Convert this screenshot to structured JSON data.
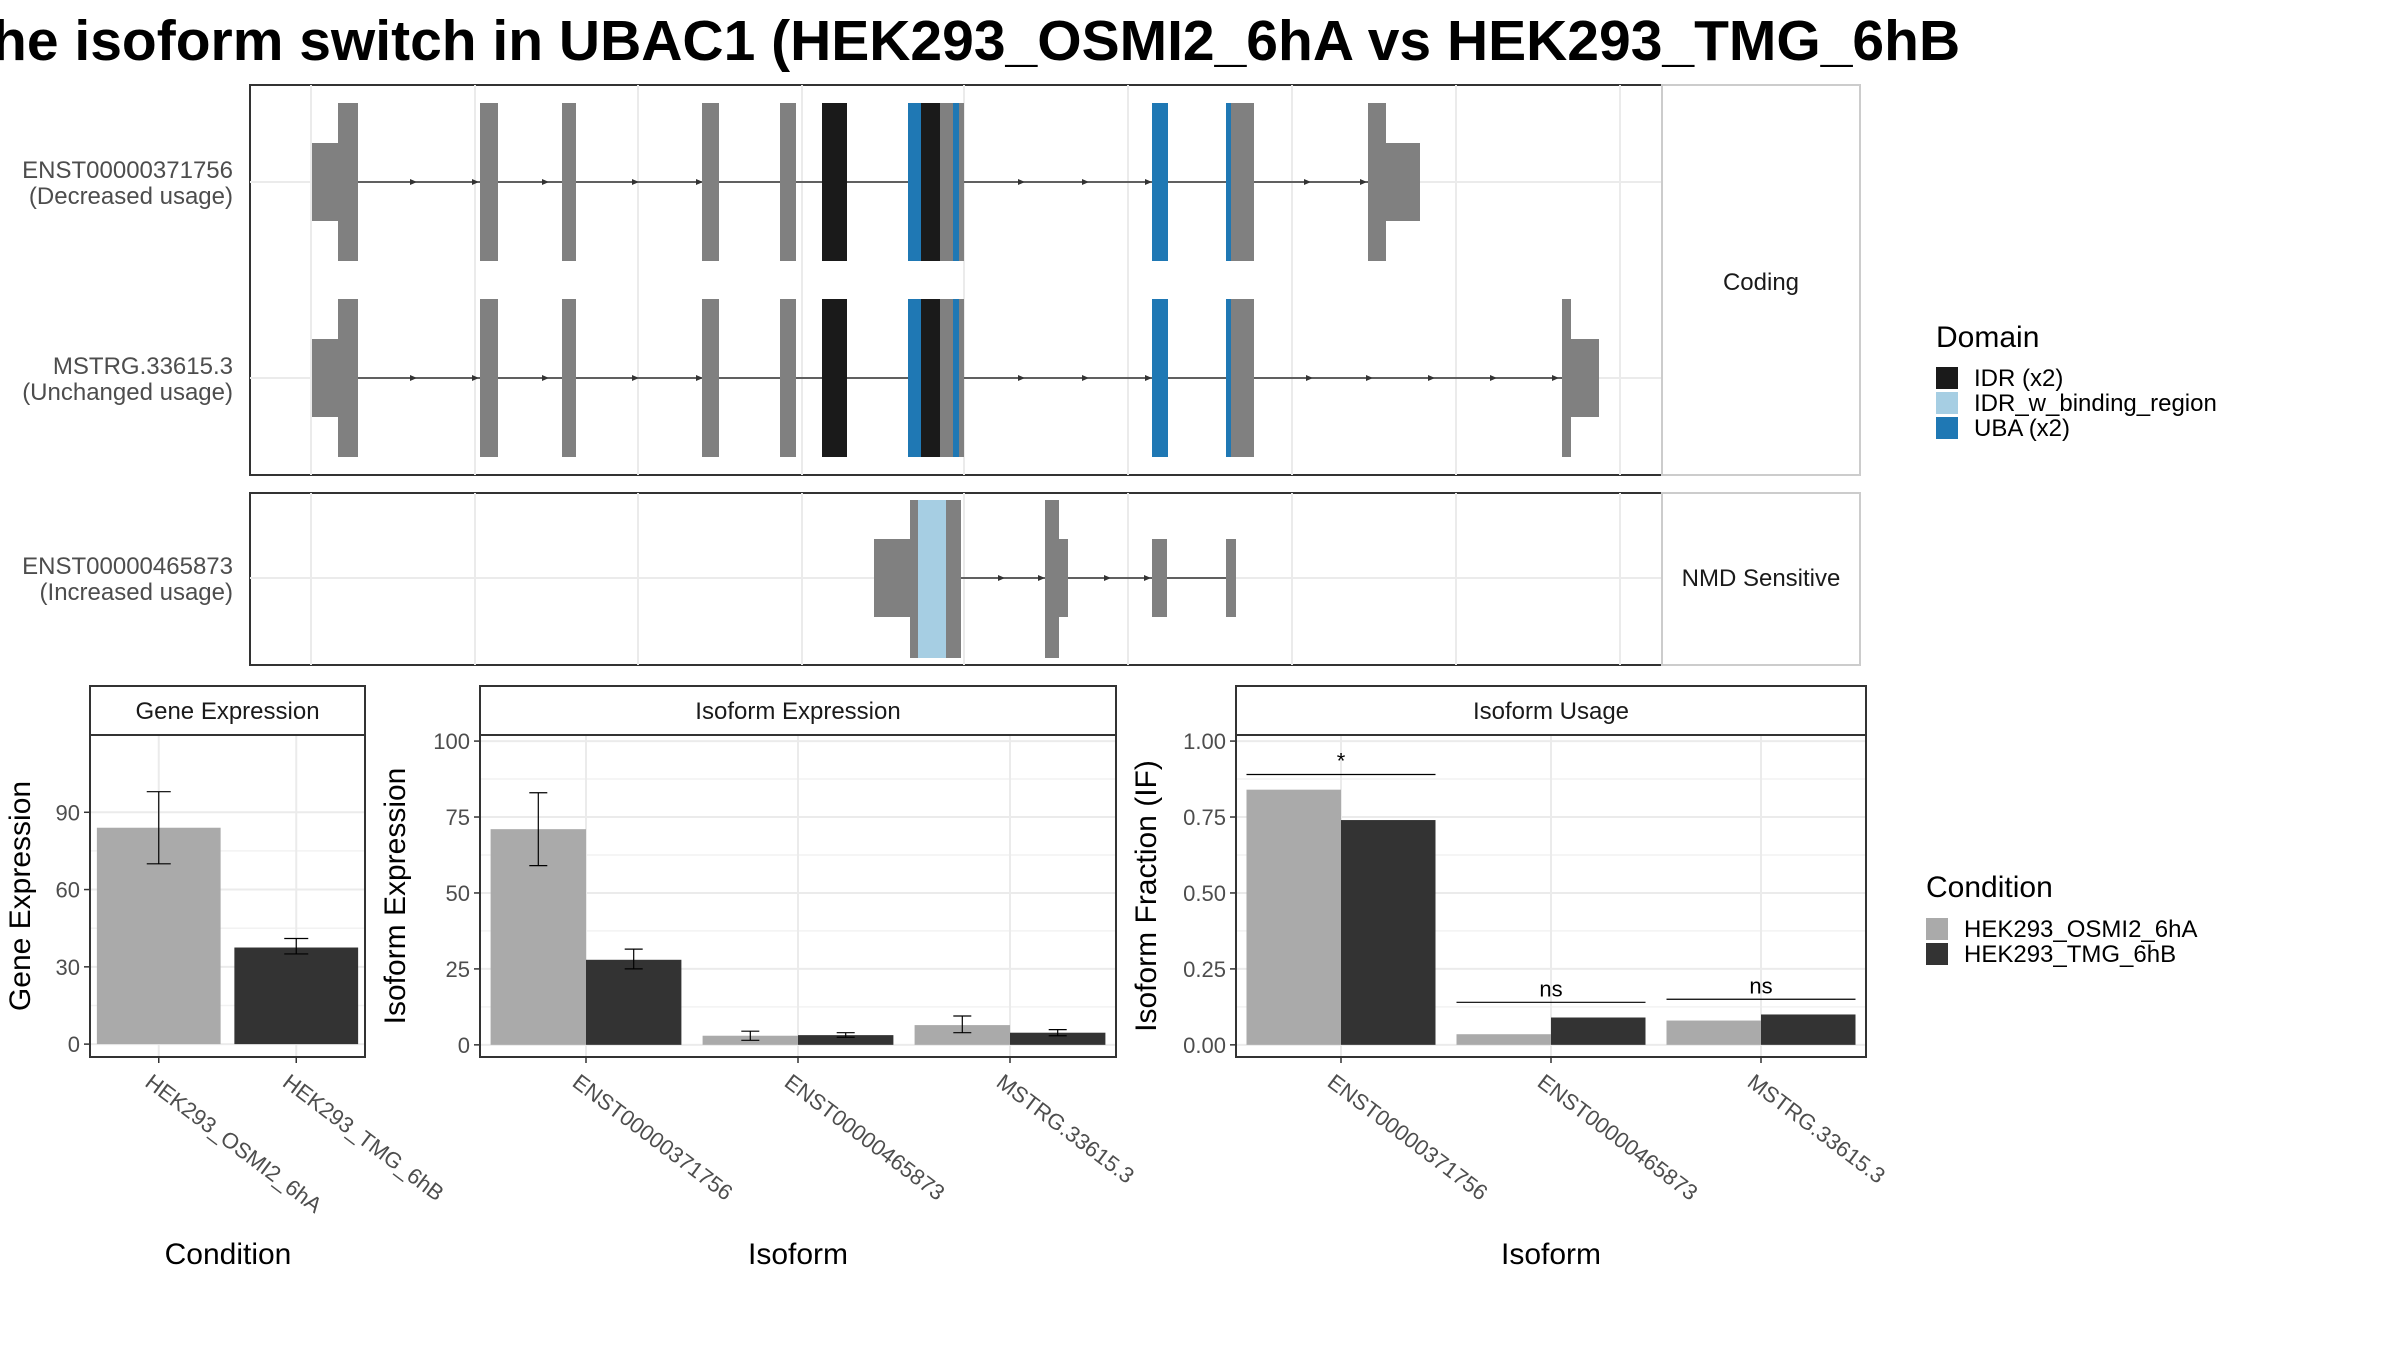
{
  "title": "he isoform switch in UBAC1 (HEK293_OSMI2_6hA vs HEK293_TMG_6hB",
  "structure": {
    "panels": [
      {
        "label": "Coding",
        "transcripts": [
          {
            "name": "ENST00000371756",
            "usage": "(Decreased usage)"
          },
          {
            "name": "MSTRG.33615.3",
            "usage": "(Unchanged usage)"
          }
        ]
      },
      {
        "label": "NMD Sensitive",
        "transcripts": [
          {
            "name": "ENST00000465873",
            "usage": "(Increased usage)"
          }
        ]
      }
    ]
  },
  "domain_legend": {
    "title": "Domain",
    "items": [
      {
        "label": "IDR (x2)",
        "color": "#1a1a1a"
      },
      {
        "label": "IDR_w_binding_region",
        "color": "#a6cee3"
      },
      {
        "label": "UBA (x2)",
        "color": "#1f78b4"
      }
    ]
  },
  "condition_legend": {
    "title": "Condition",
    "items": [
      {
        "label": "HEK293_OSMI2_6hA",
        "color": "#aaaaaa"
      },
      {
        "label": "HEK293_TMG_6hB",
        "color": "#333333"
      }
    ]
  },
  "chart_data": [
    {
      "type": "bar",
      "title": "Gene Expression",
      "xlabel": "Condition",
      "ylabel": "Gene Expression",
      "categories": [
        "HEK293_OSMI2_6hA",
        "HEK293_TMG_6hB"
      ],
      "values": [
        84,
        37.5
      ],
      "errors": [
        [
          70,
          98
        ],
        [
          35,
          41
        ]
      ],
      "colors": [
        "#aaaaaa",
        "#333333"
      ],
      "yticks": [
        0,
        30,
        60,
        90
      ],
      "ylim": [
        -5,
        120
      ]
    },
    {
      "type": "bar",
      "title": "Isoform Expression",
      "xlabel": "Isoform",
      "ylabel": "Isoform Expression",
      "categories": [
        "ENST00000371756",
        "ENST00000465873",
        "MSTRG.33615.3"
      ],
      "series": [
        {
          "name": "HEK293_OSMI2_6hA",
          "values": [
            71,
            3,
            6.5
          ],
          "errors": [
            [
              59,
              83
            ],
            [
              1.5,
              4.5
            ],
            [
              4,
              9.5
            ]
          ]
        },
        {
          "name": "HEK293_TMG_6hB",
          "values": [
            28,
            3.2,
            4
          ],
          "errors": [
            [
              25,
              31.5
            ],
            [
              2.5,
              4
            ],
            [
              3,
              5
            ]
          ]
        }
      ],
      "yticks": [
        0,
        25,
        50,
        75,
        100
      ],
      "ylim": [
        -4,
        102
      ]
    },
    {
      "type": "bar",
      "title": "Isoform Usage",
      "xlabel": "Isoform",
      "ylabel": "Isoform Fraction (IF)",
      "categories": [
        "ENST00000371756",
        "ENST00000465873",
        "MSTRG.33615.3"
      ],
      "series": [
        {
          "name": "HEK293_OSMI2_6hA",
          "values": [
            0.84,
            0.035,
            0.08
          ]
        },
        {
          "name": "HEK293_TMG_6hB",
          "values": [
            0.74,
            0.09,
            0.1
          ]
        }
      ],
      "significance": [
        "*",
        "ns",
        "ns"
      ],
      "yticks": [
        "0.00",
        "0.25",
        "0.50",
        "0.75",
        "1.00"
      ],
      "ylim": [
        -0.04,
        1.02
      ]
    }
  ]
}
